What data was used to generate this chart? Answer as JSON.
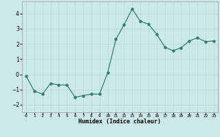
{
  "x": [
    0,
    1,
    2,
    3,
    4,
    5,
    6,
    7,
    8,
    9,
    10,
    11,
    12,
    13,
    14,
    15,
    16,
    17,
    18,
    19,
    20,
    21,
    22,
    23
  ],
  "y": [
    -0.1,
    -1.1,
    -1.3,
    -0.6,
    -0.7,
    -0.7,
    -1.5,
    -1.4,
    -1.3,
    -1.3,
    0.1,
    2.3,
    3.25,
    4.3,
    3.5,
    3.3,
    2.65,
    1.8,
    1.55,
    1.75,
    2.2,
    2.4,
    2.15,
    2.2
  ],
  "xlabel": "Humidex (Indice chaleur)",
  "xlim": [
    -0.5,
    23.5
  ],
  "ylim": [
    -2.5,
    4.8
  ],
  "yticks": [
    -2,
    -1,
    0,
    1,
    2,
    3,
    4
  ],
  "xtick_labels": [
    "0",
    "1",
    "2",
    "3",
    "4",
    "5",
    "6",
    "7",
    "8",
    "9",
    "10",
    "11",
    "12",
    "13",
    "14",
    "15",
    "16",
    "17",
    "18",
    "19",
    "20",
    "21",
    "22",
    "23"
  ],
  "line_color": "#2e7d6e",
  "marker_color": "#2e7d6e",
  "bg_color": "#cce8e8",
  "grid_color": "#b8d8d8"
}
